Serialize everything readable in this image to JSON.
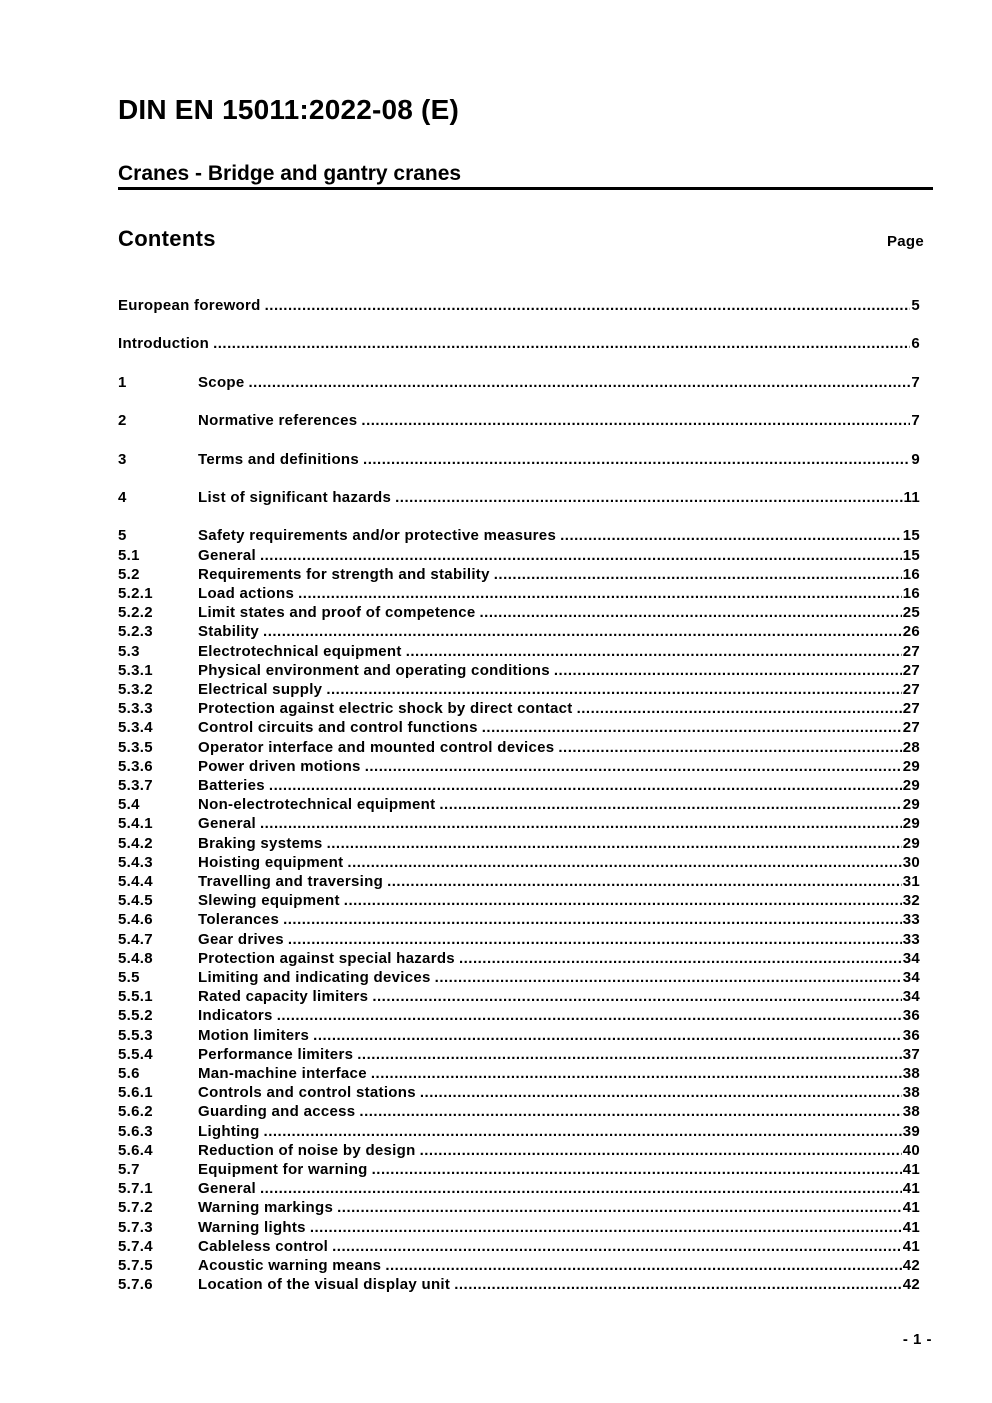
{
  "page": {
    "title": "DIN EN 15011:2022-08 (E)",
    "subtitle": "Cranes - Bridge and gantry cranes",
    "contents_heading": "Contents",
    "page_column_label": "Page",
    "footer_page_number": "- 1 -"
  },
  "toc": {
    "entries": [
      {
        "num": "",
        "label": "European foreword",
        "page": "5",
        "gap": true
      },
      {
        "num": "",
        "label": "Introduction",
        "page": "6",
        "gap": true
      },
      {
        "num": "1",
        "label": "Scope",
        "page": "7",
        "gap": true
      },
      {
        "num": "2",
        "label": "Normative references",
        "page": "7",
        "gap": true
      },
      {
        "num": "3",
        "label": "Terms and definitions",
        "page": "9",
        "gap": true
      },
      {
        "num": "4",
        "label": "List of significant hazards",
        "page": "11",
        "gap": true
      },
      {
        "num": "5",
        "label": "Safety requirements and/or protective measures",
        "page": "15",
        "gap": true
      },
      {
        "num": "5.1",
        "label": "General",
        "page": "15"
      },
      {
        "num": "5.2",
        "label": "Requirements for strength and stability",
        "page": "16"
      },
      {
        "num": "5.2.1",
        "label": "Load actions",
        "page": "16"
      },
      {
        "num": "5.2.2",
        "label": "Limit states and proof of competence",
        "page": "25"
      },
      {
        "num": "5.2.3",
        "label": "Stability",
        "page": "26"
      },
      {
        "num": "5.3",
        "label": "Electrotechnical equipment",
        "page": "27"
      },
      {
        "num": "5.3.1",
        "label": "Physical environment and operating conditions",
        "page": "27"
      },
      {
        "num": "5.3.2",
        "label": "Electrical supply",
        "page": "27"
      },
      {
        "num": "5.3.3",
        "label": "Protection against electric shock by direct contact",
        "page": "27"
      },
      {
        "num": "5.3.4",
        "label": "Control circuits and control functions",
        "page": "27"
      },
      {
        "num": "5.3.5",
        "label": "Operator interface and mounted control devices",
        "page": "28"
      },
      {
        "num": "5.3.6",
        "label": "Power driven motions",
        "page": "29"
      },
      {
        "num": "5.3.7",
        "label": "Batteries",
        "page": "29"
      },
      {
        "num": "5.4",
        "label": "Non-electrotechnical equipment",
        "page": "29"
      },
      {
        "num": "5.4.1",
        "label": "General",
        "page": "29"
      },
      {
        "num": "5.4.2",
        "label": "Braking systems",
        "page": "29"
      },
      {
        "num": "5.4.3",
        "label": "Hoisting equipment",
        "page": "30"
      },
      {
        "num": "5.4.4",
        "label": "Travelling and traversing",
        "page": "31"
      },
      {
        "num": "5.4.5",
        "label": "Slewing equipment",
        "page": "32"
      },
      {
        "num": "5.4.6",
        "label": "Tolerances",
        "page": "33"
      },
      {
        "num": "5.4.7",
        "label": "Gear drives",
        "page": "33"
      },
      {
        "num": "5.4.8",
        "label": "Protection against special hazards",
        "page": "34"
      },
      {
        "num": "5.5",
        "label": "Limiting and indicating devices",
        "page": "34"
      },
      {
        "num": "5.5.1",
        "label": "Rated capacity limiters",
        "page": "34"
      },
      {
        "num": "5.5.2",
        "label": "Indicators",
        "page": "36"
      },
      {
        "num": "5.5.3",
        "label": "Motion limiters",
        "page": "36"
      },
      {
        "num": "5.5.4",
        "label": "Performance limiters",
        "page": "37"
      },
      {
        "num": "5.6",
        "label": "Man-machine interface",
        "page": "38"
      },
      {
        "num": "5.6.1",
        "label": "Controls and control stations",
        "page": "38"
      },
      {
        "num": "5.6.2",
        "label": "Guarding and access",
        "page": "38"
      },
      {
        "num": "5.6.3",
        "label": "Lighting",
        "page": "39"
      },
      {
        "num": "5.6.4",
        "label": "Reduction of noise by design",
        "page": "40"
      },
      {
        "num": "5.7",
        "label": "Equipment for warning",
        "page": "41"
      },
      {
        "num": "5.7.1",
        "label": "General",
        "page": "41"
      },
      {
        "num": "5.7.2",
        "label": "Warning markings",
        "page": "41"
      },
      {
        "num": "5.7.3",
        "label": "Warning lights",
        "page": "41"
      },
      {
        "num": "5.7.4",
        "label": "Cableless control",
        "page": "41"
      },
      {
        "num": "5.7.5",
        "label": "Acoustic warning means",
        "page": "42"
      },
      {
        "num": "5.7.6",
        "label": "Location of the visual display unit",
        "page": "42"
      }
    ]
  }
}
